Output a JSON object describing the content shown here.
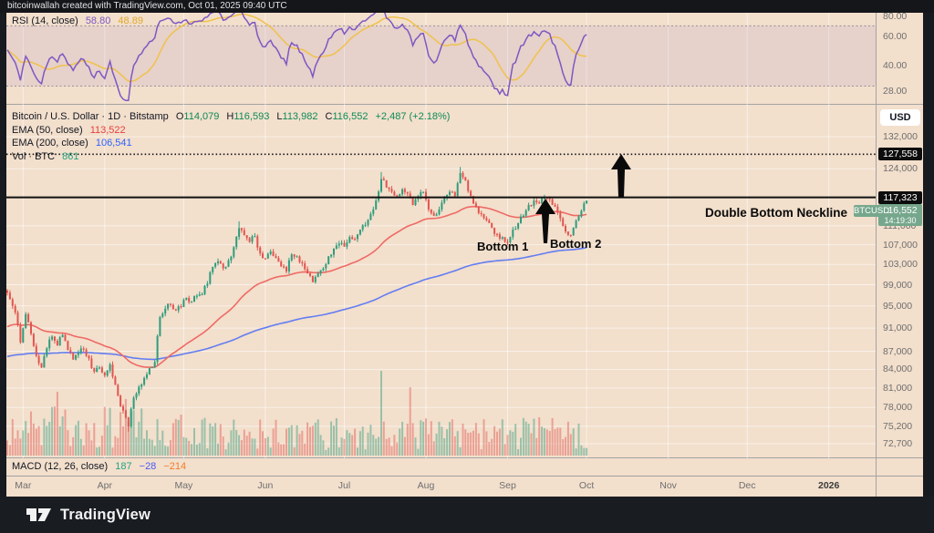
{
  "titlebar": {
    "text": "bitcoinwallah created with TradingView.com, Oct 01, 2025 09:40 UTC"
  },
  "rsi_pane": {
    "legend_label": "RSI (14, close)",
    "value_main": "58.80",
    "value_ma": "48.89",
    "ticks": [
      {
        "label": "80.00",
        "v": 80
      },
      {
        "label": "60.00",
        "v": 60
      },
      {
        "label": "40.00",
        "v": 40
      },
      {
        "label": "28.00",
        "v": 28
      }
    ],
    "band": {
      "upper": 70,
      "lower": 30
    }
  },
  "main_pane": {
    "symbol_line": {
      "title": "Bitcoin / U.S. Dollar · 1D · Bitstamp",
      "o_label": "O",
      "o": "114,079",
      "h_label": "H",
      "h": "116,593",
      "l_label": "L",
      "l": "113,982",
      "c_label": "C",
      "c": "116,552",
      "change": "+2,487 (+2.18%)"
    },
    "ema50": {
      "label": "EMA (50, close)",
      "value": "113,522"
    },
    "ema200": {
      "label": "EMA (200, close)",
      "value": "106,541"
    },
    "vol": {
      "label": "Vol · BTC",
      "value": "861"
    },
    "usd_button": "USD",
    "price_ticks": [
      {
        "label": "132,000",
        "price": 132000
      },
      {
        "label": "124,000",
        "price": 124000
      },
      {
        "label": "111,000",
        "price": 111000
      },
      {
        "label": "107,000",
        "price": 107000
      },
      {
        "label": "103,000",
        "price": 103000
      },
      {
        "label": "99,000",
        "price": 99000
      },
      {
        "label": "95,000",
        "price": 95000
      },
      {
        "label": "91,000",
        "price": 91000
      },
      {
        "label": "87,000",
        "price": 87000
      },
      {
        "label": "84,000",
        "price": 84000
      },
      {
        "label": "81,000",
        "price": 81000
      },
      {
        "label": "78,000",
        "price": 78000
      },
      {
        "label": "75,200",
        "price": 75200
      },
      {
        "label": "72,700",
        "price": 72700
      }
    ],
    "dotted_level": {
      "label": "127,558",
      "price": 127558
    },
    "neckline": {
      "label": "117,323",
      "price": 117323
    },
    "last_price": {
      "label": "116,552",
      "price": 116552,
      "countdown": "14:19:30",
      "symbol_tag": "BTCUSD"
    },
    "annotations": {
      "bottom1": "Bottom 1",
      "bottom2": "Bottom 2",
      "neckline_text": "Double Bottom Neckline"
    }
  },
  "macd_pane": {
    "legend_label": "MACD (12, 26, close)",
    "hist": "187",
    "macd": "−28",
    "signal": "−214"
  },
  "time_axis": {
    "months": [
      {
        "label": "Mar",
        "day": 6
      },
      {
        "label": "Apr",
        "day": 37
      },
      {
        "label": "May",
        "day": 67
      },
      {
        "label": "Jun",
        "day": 98
      },
      {
        "label": "Jul",
        "day": 128
      },
      {
        "label": "Aug",
        "day": 159
      },
      {
        "label": "Sep",
        "day": 190
      },
      {
        "label": "Oct",
        "day": 220
      },
      {
        "label": "Nov",
        "day": 251
      },
      {
        "label": "Dec",
        "day": 281
      },
      {
        "label": "2026",
        "day": 312,
        "bold": true
      }
    ]
  },
  "branding": {
    "name": "TradingView"
  },
  "chart_data": {
    "type": "candlestick",
    "symbol": "BTCUSD",
    "exchange": "Bitstamp",
    "interval": "1D",
    "currency": "USD",
    "title": "Bitcoin / U.S. Dollar",
    "last_bar": {
      "open": 114079,
      "high": 116593,
      "low": 113982,
      "close": 116552,
      "change": 2487,
      "change_pct": 2.18
    },
    "overlays": [
      {
        "name": "EMA 50",
        "value": 113522,
        "color": "#ef5350"
      },
      {
        "name": "EMA 200",
        "value": 106541,
        "color": "#637df2"
      }
    ],
    "indicators": [
      {
        "name": "RSI (14)",
        "value": 58.8,
        "ma": 48.89,
        "band": [
          30,
          70
        ],
        "axis_ticks": [
          80,
          60,
          40,
          28
        ]
      },
      {
        "name": "Volume BTC",
        "value": 861
      },
      {
        "name": "MACD (12,26)",
        "histogram": 187,
        "macd": -28,
        "signal": -214
      }
    ],
    "levels": {
      "double_bottom_neckline": 117323,
      "dotted_target": 127558
    },
    "y_axis_log_range": [
      72700,
      132000
    ],
    "x_axis": "days from 2025-02-23 (day 0) to 2025-10-01 (day 220)",
    "close_anchors_day_price": [
      [
        0,
        97500
      ],
      [
        2,
        95000
      ],
      [
        4,
        91500
      ],
      [
        5,
        88500
      ],
      [
        7,
        93500
      ],
      [
        9,
        90000
      ],
      [
        11,
        86200
      ],
      [
        13,
        84300
      ],
      [
        15,
        87500
      ],
      [
        17,
        89500
      ],
      [
        19,
        88000
      ],
      [
        21,
        89800
      ],
      [
        23,
        87200
      ],
      [
        25,
        85600
      ],
      [
        27,
        86800
      ],
      [
        29,
        87300
      ],
      [
        31,
        85800
      ],
      [
        33,
        83600
      ],
      [
        35,
        84300
      ],
      [
        37,
        83000
      ],
      [
        39,
        84800
      ],
      [
        41,
        81500
      ],
      [
        43,
        78200
      ],
      [
        45,
        76500
      ],
      [
        46,
        75200
      ],
      [
        48,
        79500
      ],
      [
        50,
        81200
      ],
      [
        52,
        82600
      ],
      [
        54,
        84200
      ],
      [
        56,
        85200
      ],
      [
        58,
        93000
      ],
      [
        60,
        94500
      ],
      [
        62,
        95200
      ],
      [
        64,
        94200
      ],
      [
        66,
        94800
      ],
      [
        68,
        96500
      ],
      [
        70,
        95800
      ],
      [
        72,
        96900
      ],
      [
        74,
        97200
      ],
      [
        76,
        99200
      ],
      [
        78,
        102500
      ],
      [
        80,
        103600
      ],
      [
        82,
        102200
      ],
      [
        84,
        103800
      ],
      [
        86,
        106500
      ],
      [
        88,
        110500
      ],
      [
        90,
        109000
      ],
      [
        92,
        107600
      ],
      [
        94,
        108800
      ],
      [
        96,
        105200
      ],
      [
        98,
        104200
      ],
      [
        100,
        105600
      ],
      [
        102,
        104300
      ],
      [
        104,
        102600
      ],
      [
        106,
        101600
      ],
      [
        108,
        105000
      ],
      [
        110,
        104600
      ],
      [
        112,
        103200
      ],
      [
        114,
        101200
      ],
      [
        116,
        99500
      ],
      [
        118,
        101200
      ],
      [
        120,
        102200
      ],
      [
        122,
        104600
      ],
      [
        124,
        106200
      ],
      [
        126,
        107200
      ],
      [
        128,
        106600
      ],
      [
        130,
        108600
      ],
      [
        132,
        108200
      ],
      [
        134,
        110200
      ],
      [
        136,
        111200
      ],
      [
        138,
        113600
      ],
      [
        140,
        116600
      ],
      [
        142,
        121600
      ],
      [
        144,
        119600
      ],
      [
        146,
        118600
      ],
      [
        148,
        117600
      ],
      [
        150,
        119200
      ],
      [
        152,
        118200
      ],
      [
        154,
        115600
      ],
      [
        156,
        117600
      ],
      [
        158,
        118600
      ],
      [
        160,
        114600
      ],
      [
        162,
        113200
      ],
      [
        164,
        114600
      ],
      [
        166,
        117200
      ],
      [
        168,
        118600
      ],
      [
        170,
        117600
      ],
      [
        172,
        123000
      ],
      [
        174,
        121200
      ],
      [
        176,
        117600
      ],
      [
        178,
        115200
      ],
      [
        180,
        113600
      ],
      [
        182,
        112200
      ],
      [
        184,
        110600
      ],
      [
        186,
        109200
      ],
      [
        188,
        108600
      ],
      [
        190,
        107500
      ],
      [
        192,
        110200
      ],
      [
        194,
        111600
      ],
      [
        196,
        113200
      ],
      [
        198,
        115600
      ],
      [
        200,
        116600
      ],
      [
        202,
        115900
      ],
      [
        204,
        117300
      ],
      [
        206,
        116900
      ],
      [
        208,
        115200
      ],
      [
        210,
        112600
      ],
      [
        212,
        109800
      ],
      [
        214,
        109000
      ],
      [
        216,
        112200
      ],
      [
        218,
        114300
      ],
      [
        220,
        116552
      ]
    ],
    "wick_overrides": [
      [
        46,
        "low",
        74420
      ],
      [
        88,
        "high",
        111980
      ],
      [
        142,
        "high",
        123218
      ],
      [
        172,
        "high",
        124474
      ],
      [
        204,
        "high",
        117900
      ],
      [
        214,
        "low",
        108590
      ]
    ],
    "volume_spikes_day_height": [
      [
        19,
        70
      ],
      [
        45,
        62
      ],
      [
        142,
        93
      ],
      [
        153,
        75
      ]
    ],
    "colors": {
      "up": "#2f9c7c",
      "down": "#e1554f",
      "bg": "#f2dfcc",
      "rsi": "#7e57c2",
      "rsi_ma": "#f0c24a",
      "ema50": "#ef6a65",
      "ema200": "#637df2",
      "tag_green": "#76a78c",
      "neckline": "#111111"
    }
  }
}
